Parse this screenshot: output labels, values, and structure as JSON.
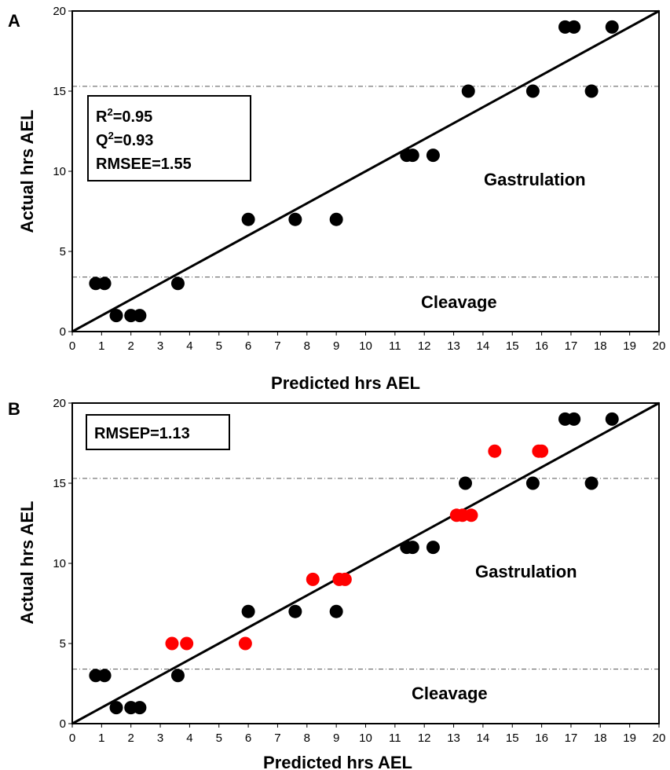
{
  "chart_data": [
    {
      "panel_label": "A",
      "type": "scatter",
      "xlabel": "Predicted  hrs AEL",
      "ylabel": "Actual hrs AEL",
      "xlim": [
        0,
        20
      ],
      "ylim": [
        0,
        20
      ],
      "xticks": [
        0,
        1,
        2,
        3,
        4,
        5,
        6,
        7,
        8,
        9,
        10,
        11,
        12,
        13,
        14,
        15,
        16,
        17,
        18,
        19,
        20
      ],
      "yticks": [
        0,
        5,
        10,
        15,
        20
      ],
      "reference_lines": {
        "diagonal": [
          [
            0,
            0
          ],
          [
            20,
            20
          ]
        ],
        "horizontal_dashed": [
          3.4,
          15.3
        ]
      },
      "stats": {
        "r2_label": "R",
        "r2_sup": "2",
        "r2_value": "=0.95",
        "q2_label": "Q",
        "q2_sup": "2",
        "q2_value": "=0.93",
        "rmsee": "RMSEE=1.55"
      },
      "annotations": {
        "upper": "Gastrulation",
        "lower": "Cleavage"
      },
      "series": [
        {
          "color": "#000000",
          "points": [
            [
              0.8,
              3
            ],
            [
              1.1,
              3
            ],
            [
              1.5,
              1
            ],
            [
              2.0,
              1
            ],
            [
              2.3,
              1
            ],
            [
              3.6,
              3
            ],
            [
              6.0,
              7
            ],
            [
              7.6,
              7
            ],
            [
              9.0,
              7
            ],
            [
              11.4,
              11
            ],
            [
              11.6,
              11
            ],
            [
              12.3,
              11
            ],
            [
              13.5,
              15
            ],
            [
              15.7,
              15
            ],
            [
              16.8,
              19
            ],
            [
              17.1,
              19
            ],
            [
              17.7,
              15
            ],
            [
              18.4,
              19
            ]
          ]
        }
      ]
    },
    {
      "panel_label": "B",
      "type": "scatter",
      "xlabel": "Predicted hrs AEL",
      "ylabel": "Actual hrs AEL",
      "xlim": [
        0,
        20
      ],
      "ylim": [
        0,
        20
      ],
      "xticks": [
        0,
        1,
        2,
        3,
        4,
        5,
        6,
        7,
        8,
        9,
        10,
        11,
        12,
        13,
        14,
        15,
        16,
        17,
        18,
        19,
        20
      ],
      "yticks": [
        0,
        5,
        10,
        15,
        20
      ],
      "reference_lines": {
        "diagonal": [
          [
            0,
            0
          ],
          [
            20,
            20
          ]
        ],
        "horizontal_dashed": [
          3.4,
          15.3
        ]
      },
      "stats": {
        "rmsep": "RMSEP=1.13"
      },
      "annotations": {
        "upper": "Gastrulation",
        "lower": "Cleavage"
      },
      "series": [
        {
          "color": "#000000",
          "points": [
            [
              0.8,
              3
            ],
            [
              1.1,
              3
            ],
            [
              1.5,
              1
            ],
            [
              2.0,
              1
            ],
            [
              2.3,
              1
            ],
            [
              3.6,
              3
            ],
            [
              6.0,
              7
            ],
            [
              7.6,
              7
            ],
            [
              9.0,
              7
            ],
            [
              11.4,
              11
            ],
            [
              11.6,
              11
            ],
            [
              12.3,
              11
            ],
            [
              13.4,
              15
            ],
            [
              15.7,
              15
            ],
            [
              16.8,
              19
            ],
            [
              17.1,
              19
            ],
            [
              17.7,
              15
            ],
            [
              18.4,
              19
            ]
          ]
        },
        {
          "color": "#ff0000",
          "points": [
            [
              3.4,
              5
            ],
            [
              3.9,
              5
            ],
            [
              5.9,
              5
            ],
            [
              8.2,
              9
            ],
            [
              9.1,
              9
            ],
            [
              9.3,
              9
            ],
            [
              13.1,
              13
            ],
            [
              13.3,
              13
            ],
            [
              13.6,
              13
            ],
            [
              14.4,
              17
            ],
            [
              15.9,
              17
            ],
            [
              16.0,
              17
            ]
          ]
        }
      ]
    }
  ]
}
